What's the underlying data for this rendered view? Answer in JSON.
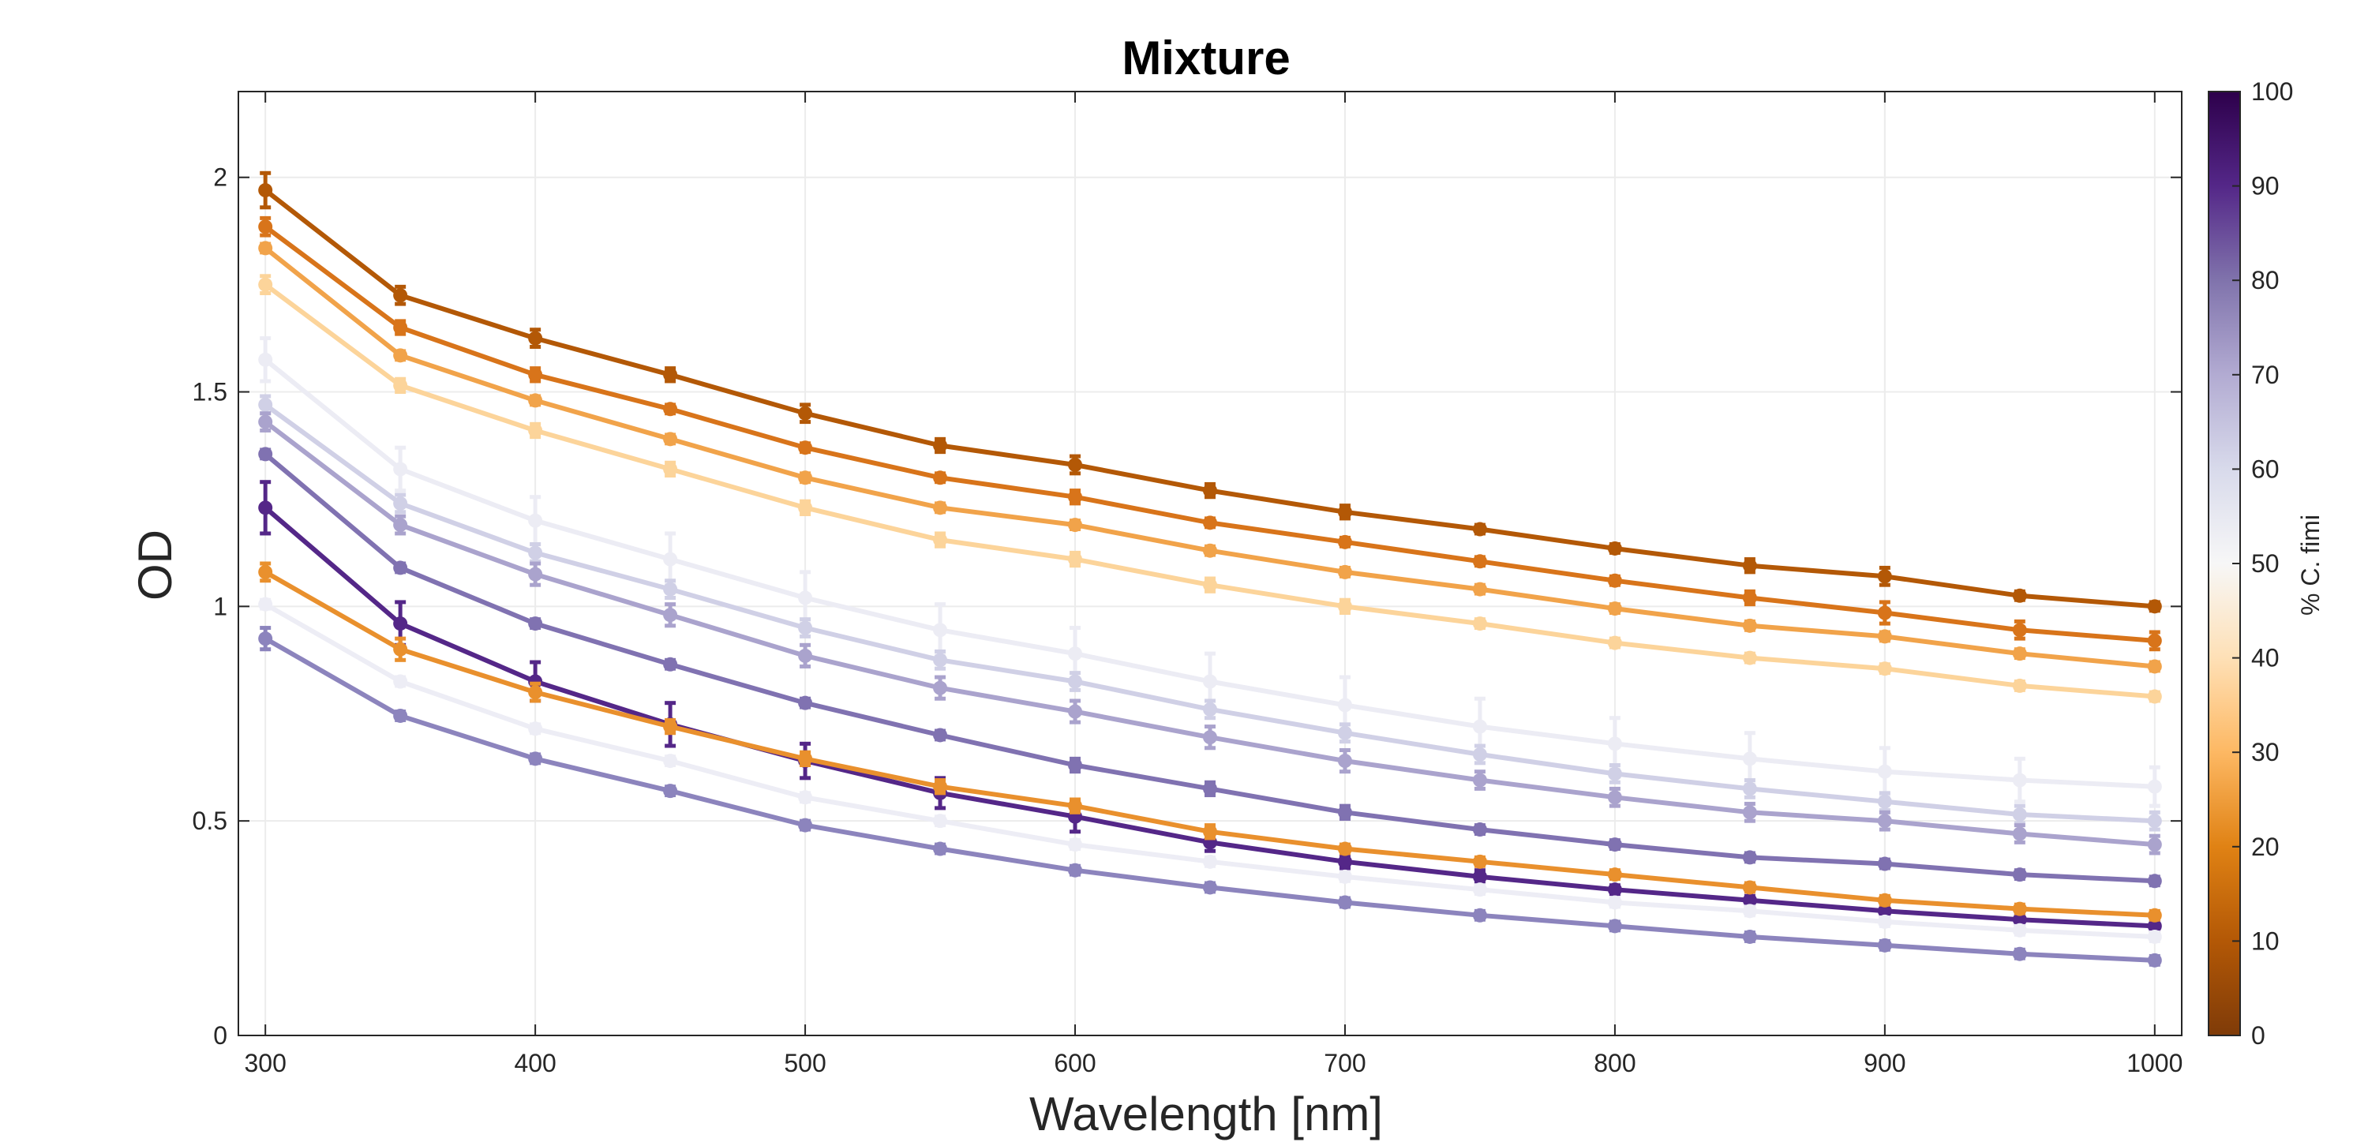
{
  "chart_data": {
    "type": "line",
    "title": "Mixture",
    "xlabel": "Wavelength [nm]",
    "ylabel": "OD",
    "xlim": [
      290,
      1010
    ],
    "ylim": [
      0,
      2.2
    ],
    "x": [
      300,
      350,
      400,
      450,
      500,
      550,
      600,
      650,
      700,
      750,
      800,
      850,
      900,
      950,
      1000
    ],
    "x_ticks": [
      "300",
      "400",
      "500",
      "600",
      "700",
      "800",
      "900",
      "1000"
    ],
    "y_ticks": [
      "0",
      "0.5",
      "1",
      "1.5",
      "2"
    ],
    "grid": true,
    "colorbar": {
      "label": "% C. fimi",
      "range": [
        0,
        100
      ],
      "ticks": [
        "0",
        "10",
        "20",
        "30",
        "40",
        "50",
        "60",
        "70",
        "80",
        "90",
        "100"
      ],
      "stops": [
        "#7f3b08",
        "#b35806",
        "#e08214",
        "#fdb863",
        "#fee0b6",
        "#f7f7f7",
        "#d8daeb",
        "#b2abd2",
        "#8073ac",
        "#542788",
        "#2d004b"
      ]
    },
    "series": [
      {
        "color": "#b35806",
        "values": [
          1.97,
          1.725,
          1.625,
          1.54,
          1.45,
          1.375,
          1.33,
          1.27,
          1.22,
          1.18,
          1.135,
          1.095,
          1.07,
          1.025,
          1.0
        ],
        "errors": [
          0.04,
          0.02,
          0.02,
          0.015,
          0.02,
          0.015,
          0.02,
          0.015,
          0.015,
          0.01,
          0.01,
          0.015,
          0.02,
          0.01,
          0.01
        ]
      },
      {
        "color": "#d8741a",
        "values": [
          1.885,
          1.65,
          1.54,
          1.46,
          1.37,
          1.3,
          1.255,
          1.195,
          1.15,
          1.105,
          1.06,
          1.02,
          0.985,
          0.945,
          0.92
        ],
        "errors": [
          0.02,
          0.015,
          0.015,
          0.01,
          0.01,
          0.01,
          0.015,
          0.01,
          0.01,
          0.01,
          0.01,
          0.015,
          0.025,
          0.02,
          0.02
        ]
      },
      {
        "color": "#f1a34a",
        "values": [
          1.835,
          1.585,
          1.48,
          1.39,
          1.3,
          1.23,
          1.19,
          1.13,
          1.08,
          1.04,
          0.995,
          0.955,
          0.93,
          0.89,
          0.86
        ],
        "errors": [
          0.01,
          0.01,
          0.01,
          0.01,
          0.01,
          0.01,
          0.01,
          0.01,
          0.01,
          0.01,
          0.01,
          0.01,
          0.01,
          0.01,
          0.01
        ]
      },
      {
        "color": "#fcd49a",
        "values": [
          1.75,
          1.515,
          1.41,
          1.32,
          1.23,
          1.155,
          1.11,
          1.05,
          1.0,
          0.96,
          0.915,
          0.88,
          0.855,
          0.815,
          0.79
        ],
        "errors": [
          0.02,
          0.015,
          0.015,
          0.015,
          0.015,
          0.015,
          0.015,
          0.015,
          0.015,
          0.01,
          0.01,
          0.01,
          0.01,
          0.01,
          0.01
        ]
      },
      {
        "color": "#ececf4",
        "values": [
          1.575,
          1.32,
          1.2,
          1.11,
          1.02,
          0.945,
          0.89,
          0.825,
          0.77,
          0.72,
          0.68,
          0.645,
          0.615,
          0.595,
          0.58
        ],
        "errors": [
          0.05,
          0.05,
          0.055,
          0.06,
          0.06,
          0.06,
          0.06,
          0.065,
          0.065,
          0.065,
          0.06,
          0.06,
          0.055,
          0.05,
          0.045
        ]
      },
      {
        "color": "#d0d0e6",
        "values": [
          1.47,
          1.24,
          1.125,
          1.04,
          0.95,
          0.875,
          0.825,
          0.76,
          0.705,
          0.655,
          0.61,
          0.575,
          0.545,
          0.515,
          0.5
        ],
        "errors": [
          0.02,
          0.02,
          0.02,
          0.02,
          0.02,
          0.02,
          0.02,
          0.02,
          0.02,
          0.02,
          0.02,
          0.02,
          0.02,
          0.02,
          0.02
        ]
      },
      {
        "color": "#aaa3cd",
        "values": [
          1.43,
          1.19,
          1.075,
          0.98,
          0.885,
          0.81,
          0.755,
          0.695,
          0.64,
          0.595,
          0.555,
          0.52,
          0.5,
          0.47,
          0.445
        ],
        "errors": [
          0.02,
          0.02,
          0.025,
          0.025,
          0.025,
          0.025,
          0.025,
          0.025,
          0.025,
          0.02,
          0.02,
          0.02,
          0.02,
          0.02,
          0.02
        ]
      },
      {
        "color": "#8072b1",
        "values": [
          1.355,
          1.09,
          0.96,
          0.865,
          0.775,
          0.7,
          0.63,
          0.575,
          0.52,
          0.48,
          0.445,
          0.415,
          0.4,
          0.375,
          0.36
        ],
        "errors": [
          0.01,
          0.01,
          0.01,
          0.01,
          0.01,
          0.01,
          0.015,
          0.015,
          0.015,
          0.01,
          0.01,
          0.01,
          0.01,
          0.01,
          0.01
        ]
      },
      {
        "color": "#542788",
        "values": [
          1.23,
          0.96,
          0.825,
          0.725,
          0.64,
          0.565,
          0.51,
          0.45,
          0.405,
          0.37,
          0.34,
          0.315,
          0.29,
          0.27,
          0.255
        ],
        "errors": [
          0.06,
          0.05,
          0.045,
          0.05,
          0.04,
          0.035,
          0.035,
          0.02,
          0.015,
          0.015,
          0.01,
          0.01,
          0.01,
          0.01,
          0.01
        ]
      },
      {
        "color": "#e9902d",
        "values": [
          1.08,
          0.9,
          0.8,
          0.72,
          0.645,
          0.58,
          0.535,
          0.475,
          0.435,
          0.405,
          0.375,
          0.345,
          0.315,
          0.295,
          0.28
        ],
        "errors": [
          0.02,
          0.025,
          0.02,
          0.015,
          0.015,
          0.015,
          0.015,
          0.015,
          0.01,
          0.01,
          0.01,
          0.01,
          0.01,
          0.01,
          0.01
        ]
      },
      {
        "color": "#ededf5",
        "values": [
          1.005,
          0.825,
          0.715,
          0.64,
          0.555,
          0.5,
          0.445,
          0.405,
          0.37,
          0.34,
          0.31,
          0.29,
          0.265,
          0.245,
          0.23
        ],
        "errors": [
          0.01,
          0.01,
          0.01,
          0.01,
          0.01,
          0.01,
          0.01,
          0.01,
          0.01,
          0.01,
          0.01,
          0.01,
          0.01,
          0.01,
          0.01
        ]
      },
      {
        "color": "#8c84bd",
        "values": [
          0.925,
          0.745,
          0.645,
          0.57,
          0.49,
          0.435,
          0.385,
          0.345,
          0.31,
          0.28,
          0.255,
          0.23,
          0.21,
          0.19,
          0.175
        ],
        "errors": [
          0.025,
          0.01,
          0.01,
          0.01,
          0.01,
          0.01,
          0.01,
          0.01,
          0.01,
          0.01,
          0.01,
          0.01,
          0.01,
          0.01,
          0.01
        ]
      }
    ]
  }
}
